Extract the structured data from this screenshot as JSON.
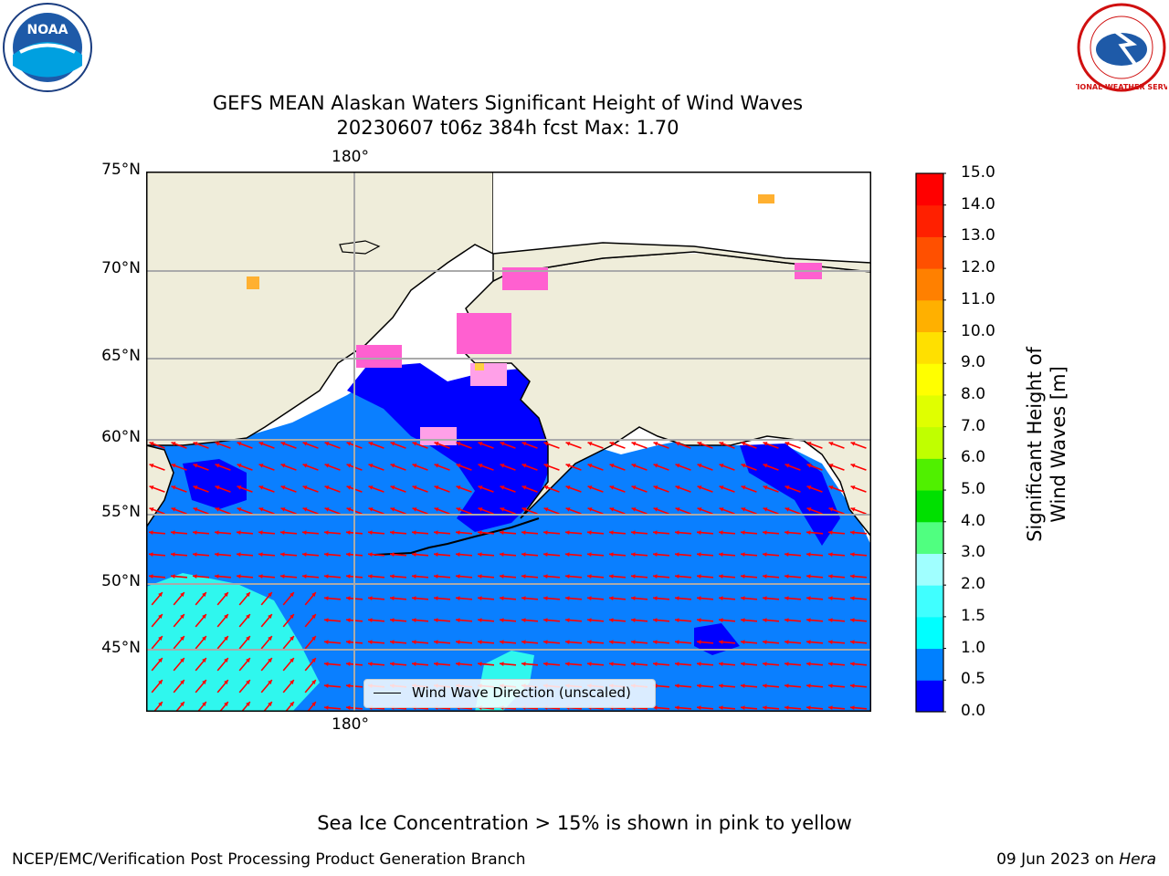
{
  "title_line1": "GEFS MEAN Alaskan Waters Significant Height of Wind Waves",
  "title_line2": "20230607 t06z 384h fcst   Max: 1.70",
  "lat_labels": [
    "75°N",
    "70°N",
    "65°N",
    "60°N",
    "55°N",
    "50°N",
    "45°N"
  ],
  "lon_label": "180°",
  "legend": "Wind Wave Direction (unscaled)",
  "colorbar": {
    "label": "Significant Height of Wind Waves [m]",
    "ticks": [
      "0.0",
      "0.5",
      "1.0",
      "1.5",
      "2.0",
      "3.0",
      "4.0",
      "5.0",
      "6.0",
      "7.0",
      "8.0",
      "9.0",
      "10.0",
      "11.0",
      "12.0",
      "13.0",
      "14.0",
      "15.0"
    ],
    "colors": [
      "#0000ff",
      "#0080ff",
      "#00ffff",
      "#40ffff",
      "#a0ffff",
      "#50ff80",
      "#00e000",
      "#50f000",
      "#c0ff00",
      "#e0ff00",
      "#ffff00",
      "#ffe000",
      "#ffb000",
      "#ff8000",
      "#ff5000",
      "#ff2000",
      "#ff0000"
    ]
  },
  "note": "Sea Ice Concentration > 15% is shown in pink to yellow",
  "footer_left": "NCEP/EMC/Verification Post Processing Product Generation Branch",
  "footer_right_date": "09 Jun 2023 on",
  "footer_right_host": "Hera",
  "logo_left": "NOAA",
  "logo_right": "NATIONAL WEATHER SERVICE",
  "colors": {
    "land": "#efedda",
    "ocean_main": "#0a7fff",
    "ocean_low": "#0000ff",
    "ocean_cyan": "#2ff7ee",
    "arrow": "#ff0000",
    "ice_pink": "#ff60d0",
    "ice_yellow": "#ffd040"
  }
}
